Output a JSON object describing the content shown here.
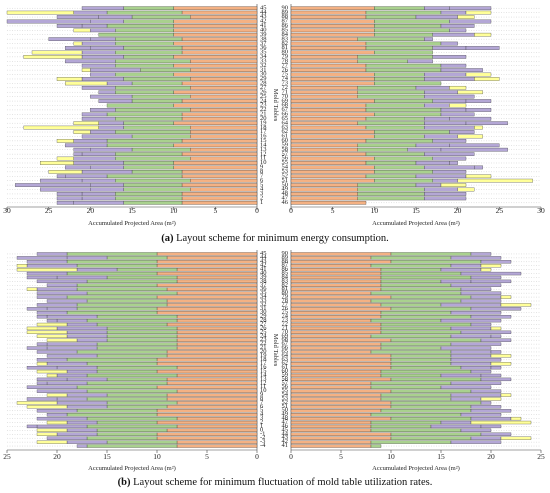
{
  "figure": {
    "caption_a_label": "(a)",
    "caption_a_text": "Layout scheme for minimum energy consumption.",
    "caption_b_label": "(b)",
    "caption_b_text": "Layout scheme for minimum fluctuation of mold table utilization rates.",
    "y_axis_title": "Mold Tables",
    "x_axis_title": "Accumulated Projected Area (m²)"
  },
  "colors": {
    "c1": "#f4b183",
    "c2": "#a9d18e",
    "c3": "#b4a7d6",
    "c4": "#ffff99",
    "c5": "#9dc3e6",
    "stroke": "#333333"
  },
  "chart_data": [
    {
      "type": "bar",
      "panel": "a-left",
      "orientation": "horizontal-reversed",
      "ylabel": "Mold Tables",
      "xlabel": "Accumulated Projected Area (m²)",
      "xlim": [
        30,
        0
      ],
      "xticks": [
        30,
        25,
        20,
        15,
        10,
        5,
        0
      ],
      "row_count": 45,
      "row_totals": [
        21,
        30,
        24,
        30,
        24,
        22,
        19,
        25,
        22,
        23,
        27,
        28,
        23,
        21,
        21,
        20,
        24,
        23,
        21,
        19,
        20,
        19,
        18,
        20,
        21,
        21,
        22,
        28,
        22,
        21,
        24,
        23,
        22,
        22,
        24,
        26,
        23,
        25,
        24,
        26,
        29,
        26,
        24,
        24,
        24
      ]
    },
    {
      "type": "bar",
      "panel": "a-right",
      "orientation": "horizontal",
      "ylabel": "Mold Tables",
      "xlabel": "Accumulated Projected Area (m²)",
      "xlim": [
        0,
        30
      ],
      "xticks": [
        0,
        5,
        10,
        15,
        20,
        25,
        30
      ],
      "row_count": 45,
      "row_totals": [
        24,
        24,
        22,
        24,
        22,
        21,
        24,
        17,
        20,
        25,
        17,
        21,
        17,
        21,
        23,
        24,
        25,
        18,
        21,
        23,
        22,
        24,
        21,
        24,
        22,
        24,
        26,
        23,
        22,
        23,
        21,
        25,
        26,
        22,
        21,
        20,
        23,
        21,
        24,
        29,
        21,
        22,
        21,
        21,
        9
      ]
    },
    {
      "type": "bar",
      "panel": "b-left",
      "orientation": "horizontal-reversed",
      "ylabel": "Mold Tables",
      "xlabel": "Accumulated Projected Area (m²)",
      "xlim": [
        25,
        0
      ],
      "xticks": [
        25,
        20,
        15,
        10,
        5,
        0
      ],
      "row_count": 50,
      "row_totals": [
        22,
        24,
        23,
        24,
        24,
        23,
        23,
        22,
        21,
        23,
        22,
        22,
        21,
        22,
        23,
        22,
        22,
        21,
        22,
        23,
        23,
        22,
        21,
        22,
        23,
        22,
        21,
        22,
        22,
        23,
        22,
        21,
        22,
        22,
        23,
        22,
        21,
        23,
        24,
        23,
        22,
        21,
        22,
        21,
        23,
        22,
        22,
        21,
        22,
        18
      ]
    },
    {
      "type": "bar",
      "panel": "b-right",
      "orientation": "horizontal",
      "ylabel": "Mold Tables",
      "xlabel": "Accumulated Projected Area (m²)",
      "xlim": [
        0,
        25
      ],
      "xticks": [
        0,
        5,
        10,
        15,
        20,
        25
      ],
      "row_count": 50,
      "row_totals": [
        20,
        21,
        22,
        21,
        20,
        23,
        21,
        22,
        21,
        20,
        21,
        22,
        21,
        24,
        23,
        21,
        22,
        21,
        20,
        21,
        22,
        21,
        22,
        21,
        20,
        21,
        22,
        21,
        22,
        21,
        20,
        21,
        22,
        21,
        20,
        21,
        22,
        21,
        20,
        21,
        22,
        21,
        23,
        24,
        21,
        20,
        22,
        24,
        21,
        9
      ]
    }
  ]
}
